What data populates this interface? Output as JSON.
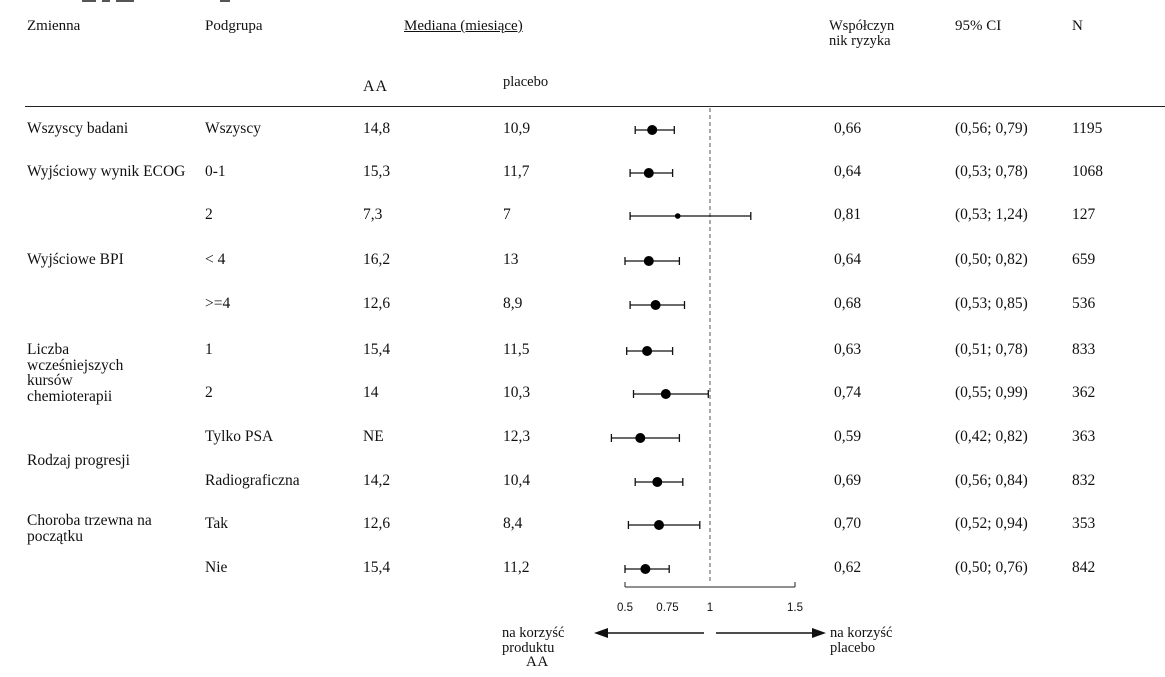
{
  "header": {
    "zmienna": "Zmienna",
    "podgrupa": "Podgrupa",
    "mediana": "Mediana (miesiące)",
    "aa": "AA",
    "placebo": "placebo",
    "hr": "Współczyn nik ryzyka",
    "ci": "95% CI",
    "n": "N"
  },
  "groups": [
    {
      "label": "Wszyscy badani"
    },
    {
      "label": "Wyjściowy wynik ECOG"
    },
    {
      "label": "Wyjściowe BPI"
    },
    {
      "label": "Liczba wcześniejszych kursów chemioterapii"
    },
    {
      "label": "Rodzaj progresji"
    },
    {
      "label": "Choroba trzewna na początku"
    }
  ],
  "rows": [
    {
      "podgrupa": "Wszyscy",
      "aa": "14,8",
      "placebo": "10,9",
      "hr": "0,66",
      "ci": "(0,56; 0,79)",
      "n": "1195"
    },
    {
      "podgrupa": "0-1",
      "aa": "15,3",
      "placebo": "11,7",
      "hr": "0,64",
      "ci": "(0,53; 0,78)",
      "n": "1068"
    },
    {
      "podgrupa": "2",
      "aa": "7,3",
      "placebo": "7",
      "hr": "0,81",
      "ci": "(0,53; 1,24)",
      "n": "127"
    },
    {
      "podgrupa": "< 4",
      "aa": "16,2",
      "placebo": "13",
      "hr": "0,64",
      "ci": "(0,50; 0,82)",
      "n": "659"
    },
    {
      "podgrupa": ">=4",
      "aa": "12,6",
      "placebo": "8,9",
      "hr": "0,68",
      "ci": "(0,53; 0,85)",
      "n": "536"
    },
    {
      "podgrupa": "1",
      "aa": "15,4",
      "placebo": "11,5",
      "hr": "0,63",
      "ci": "(0,51; 0,78)",
      "n": "833"
    },
    {
      "podgrupa": "2",
      "aa": "14",
      "placebo": "10,3",
      "hr": "0,74",
      "ci": "(0,55; 0,99)",
      "n": "362"
    },
    {
      "podgrupa": "Tylko PSA",
      "aa": "NE",
      "placebo": "12,3",
      "hr": "0,59",
      "ci": "(0,42; 0,82)",
      "n": "363"
    },
    {
      "podgrupa": "Radiograficzna",
      "aa": "14,2",
      "placebo": "10,4",
      "hr": "0,69",
      "ci": "(0,56; 0,84)",
      "n": "832"
    },
    {
      "podgrupa": "Tak",
      "aa": "12,6",
      "placebo": "8,4",
      "hr": "0,70",
      "ci": "(0,52; 0,94)",
      "n": "353"
    },
    {
      "podgrupa": "Nie",
      "aa": "15,4",
      "placebo": "11,2",
      "hr": "0,62",
      "ci": "(0,50; 0,76)",
      "n": "842"
    }
  ],
  "chart_data": {
    "type": "scatter",
    "xlim": [
      0.5,
      1.5
    ],
    "reference_line": 1,
    "ticks": [
      "0.5",
      "0.75",
      "1",
      "1.5"
    ],
    "tick_values": [
      0.5,
      0.75,
      1,
      1.5
    ],
    "points": [
      {
        "hr": 0.66,
        "lo": 0.56,
        "hi": 0.79
      },
      {
        "hr": 0.64,
        "lo": 0.53,
        "hi": 0.78
      },
      {
        "hr": 0.81,
        "lo": 0.53,
        "hi": 1.24
      },
      {
        "hr": 0.64,
        "lo": 0.5,
        "hi": 0.82
      },
      {
        "hr": 0.68,
        "lo": 0.53,
        "hi": 0.85
      },
      {
        "hr": 0.63,
        "lo": 0.51,
        "hi": 0.78
      },
      {
        "hr": 0.74,
        "lo": 0.55,
        "hi": 0.99
      },
      {
        "hr": 0.59,
        "lo": 0.42,
        "hi": 0.82
      },
      {
        "hr": 0.69,
        "lo": 0.56,
        "hi": 0.84
      },
      {
        "hr": 0.7,
        "lo": 0.52,
        "hi": 0.94
      },
      {
        "hr": 0.62,
        "lo": 0.5,
        "hi": 0.76
      }
    ],
    "favors_left": "na korzyść produktu AA",
    "favors_left_lines": [
      "na korzyść",
      "produktu",
      "AA"
    ],
    "favors_right_lines": [
      "na korzyść",
      "placebo"
    ]
  }
}
